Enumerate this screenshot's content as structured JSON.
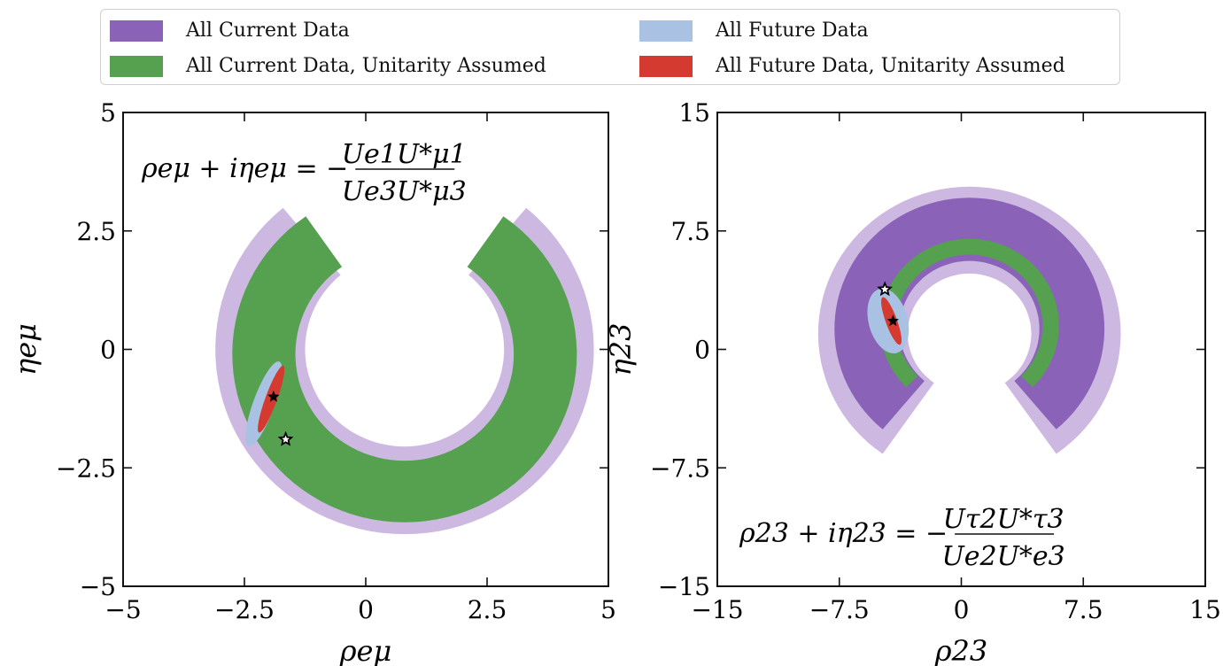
{
  "legend": [
    {
      "label": "All Current Data",
      "color": "#8a63b8"
    },
    {
      "label": "All Current Data, Unitarity Assumed",
      "color": "#55a14f"
    },
    {
      "label": "All Future Data",
      "color": "#a9c2e4"
    },
    {
      "label": "All Future Data, Unitarity Assumed",
      "color": "#d43a2f"
    }
  ],
  "chart_data": [
    {
      "type": "contour",
      "xlabel": "ρeμ",
      "ylabel": "ηeμ",
      "xlim": [
        -5,
        5
      ],
      "ylim": [
        -5,
        5
      ],
      "xticks": [
        "−5",
        "−2.5",
        "0",
        "2.5",
        "5"
      ],
      "yticks": [
        "5",
        "2.5",
        "0",
        "−2.5",
        "−5"
      ],
      "annotation": {
        "lhs": "ρeμ + iηeμ = −",
        "num": "Ue1U*μ1",
        "den": "Ue3U*μ3"
      },
      "regions": [
        {
          "series": "All Current Data",
          "level": "outer",
          "shape": "crescent",
          "center": [
            0.8,
            0
          ],
          "r_outer": 3.9,
          "r_inner": 2.05,
          "gap_angle_deg": [
            50,
            130
          ]
        },
        {
          "series": "All Current Data, Unitarity Assumed",
          "shape": "crescent",
          "center": [
            0.8,
            -0.1
          ],
          "r_outer": 3.55,
          "r_inner": 2.25,
          "gap_angle_deg": [
            55,
            125
          ]
        },
        {
          "series": "All Future Data",
          "shape": "ellipse",
          "center": [
            -2.1,
            -1.15
          ],
          "semi_axes": [
            0.22,
            0.95
          ],
          "rotation_deg": 20
        },
        {
          "series": "All Future Data, Unitarity Assumed",
          "shape": "ellipse",
          "center": [
            -1.95,
            -1.05
          ],
          "semi_axes": [
            0.12,
            0.75
          ],
          "rotation_deg": 20
        }
      ],
      "markers": [
        {
          "type": "filled-star",
          "x": -1.9,
          "y": -1.0
        },
        {
          "type": "open-star",
          "x": -1.65,
          "y": -1.9
        }
      ]
    },
    {
      "type": "contour",
      "xlabel": "ρ23",
      "ylabel": "η23",
      "xlim": [
        -15,
        15
      ],
      "ylim": [
        -15,
        15
      ],
      "xticks": [
        "−15",
        "−7.5",
        "0",
        "7.5",
        "15"
      ],
      "yticks": [
        "15",
        "7.5",
        "0",
        "−7.5",
        "−15"
      ],
      "annotation": {
        "lhs": "ρ23 + iη23 = −",
        "num": "Uτ2U*τ3",
        "den": "Ue2U*e3"
      },
      "regions": [
        {
          "series": "All Current Data",
          "level": "outer",
          "shape": "crescent",
          "center": [
            0.5,
            1.0
          ],
          "r_outer": 9.3,
          "r_inner": 3.8,
          "gap_angle_deg": [
            -125,
            -55
          ]
        },
        {
          "series": "All Current Data",
          "level": "inner",
          "shape": "crescent",
          "center": [
            0.5,
            1.3
          ],
          "r_outer": 8.3,
          "r_inner": 4.3,
          "gap_angle_deg": [
            -130,
            -50
          ]
        },
        {
          "series": "All Current Data, Unitarity Assumed",
          "shape": "crescent",
          "center": [
            0.5,
            1.5
          ],
          "r_outer": 5.5,
          "r_inner": 4.5,
          "gap_angle_deg": [
            -135,
            -45
          ]
        },
        {
          "series": "All Future Data",
          "shape": "ellipse",
          "center": [
            -4.5,
            1.8
          ],
          "semi_axes": [
            1.2,
            2.1
          ],
          "rotation_deg": -15
        },
        {
          "series": "All Future Data, Unitarity Assumed",
          "shape": "ellipse",
          "center": [
            -4.3,
            1.8
          ],
          "semi_axes": [
            0.35,
            1.6
          ],
          "rotation_deg": -20
        }
      ],
      "markers": [
        {
          "type": "filled-star",
          "x": -4.2,
          "y": 1.8
        },
        {
          "type": "open-star",
          "x": -4.7,
          "y": 3.8
        }
      ]
    }
  ]
}
